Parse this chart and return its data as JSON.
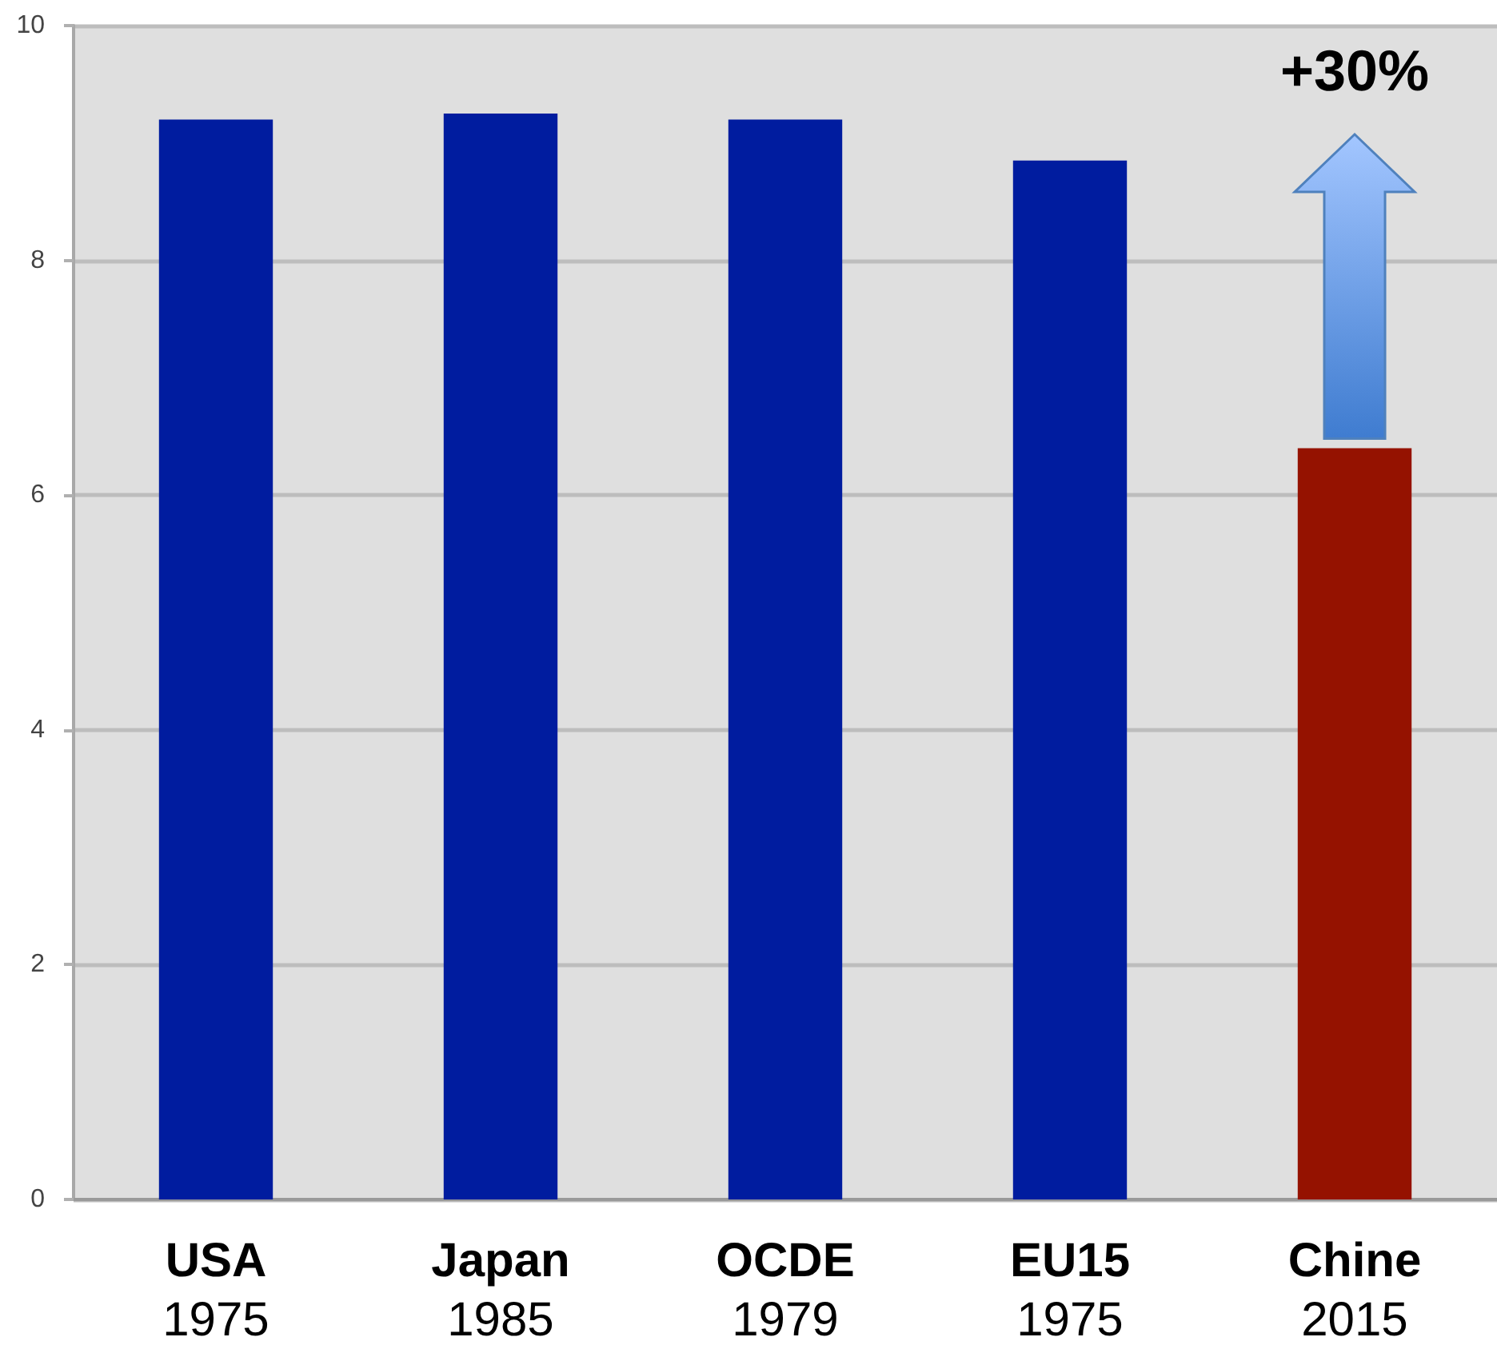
{
  "chart_data": {
    "type": "bar",
    "categories": [
      "USA\n1975",
      "Japan\n1985",
      "OCDE\n1979",
      "EU15\n1975",
      "Chine\n2015"
    ],
    "values": [
      9.2,
      9.25,
      9.2,
      8.85,
      6.4
    ],
    "colors": [
      "#001c9f",
      "#001c9f",
      "#001c9f",
      "#001c9f",
      "#951200"
    ],
    "ylim": [
      0,
      10
    ],
    "yticks": [
      0,
      2,
      4,
      6,
      8,
      10
    ],
    "grid": "y",
    "annotations": [
      "+30%"
    ]
  }
}
